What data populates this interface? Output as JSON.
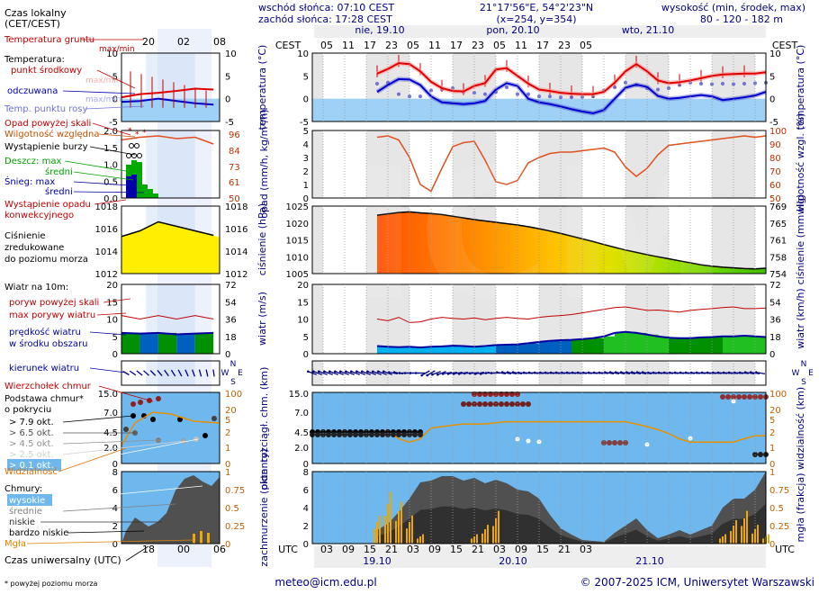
{
  "header": {
    "sunrise": "wschód słońca: 07:10 CEST",
    "sunset": "zachód słońca: 17:28 CEST",
    "coords": "21°17'56\"E, 54°2'23\"N",
    "grid": "(x=254,  y=354)",
    "elev_title": "wysokość (min, środek, max)",
    "elev_values": "80 - 120 - 182 m"
  },
  "legend": {
    "local_time": "Czas lokalny",
    "local_time_sub": "(CET/CEST)",
    "local_ticks": [
      "20",
      "02",
      "08"
    ],
    "soil_temp": "Temperatura gruntu",
    "soil_minmax": "max/min",
    "temp": "Temperatura:",
    "temp_mid": "punkt środkowy",
    "temp_maxmin": "max/min",
    "apparent": "odczuwana",
    "apparent_maxmin": "max/min",
    "dew": "Temp. punktu rosy",
    "precip_above": "Opad powyżej skali",
    "humidity": "Wilgotność względna",
    "storm": "Wystąpienie burzy",
    "rain_max": "Deszcz: max",
    "rain_avg": "średni",
    "snow_max": "Śnieg:      max",
    "snow_avg": "średni",
    "precip_occ1": "Wystąpienie opadu",
    "precip_occ2": "konwekcyjnego",
    "pressure1": "Ciśnienie",
    "pressure2": "zredukowane",
    "pressure3": "do poziomu morza",
    "wind_title": "Wiatr na 10m:",
    "gust_above": "poryw powyżej skali",
    "gust_max": "max porywy wiatru",
    "wind_speed1": "prędkość wiatru",
    "wind_speed2": "w środku obszaru",
    "wind_dir": "kierunek wiatru",
    "cloud_top": "Wierzchołek chmur",
    "cloud_base1": "Podstawa chmur*",
    "cloud_base2": "o pokryciu",
    "okt": [
      "> 7.9 okt.",
      "> 6.5 okt.",
      "> 4.5 okt.",
      "> 2.5 okt.",
      "> 0.1 okt."
    ],
    "visibility": "Widzialność",
    "clouds": "Chmury:",
    "clouds_high": "wysokie",
    "clouds_mid": "średnie",
    "clouds_low": "niskie",
    "clouds_vlow": "bardzo niskie",
    "fog": "Mgła",
    "utc_label": "Czas uniwersalny (UTC)",
    "utc_ticks": [
      "18",
      "00",
      "06"
    ],
    "footnote": "* powyżej poziomu morza"
  },
  "axes": {
    "cest": "CEST",
    "utc": "UTC",
    "days": [
      "nie, 19.10",
      "pon, 20.10",
      "wto, 21.10"
    ],
    "days_bottom": [
      "19.10",
      "20.10",
      "21.10"
    ],
    "local_hours": [
      "05",
      "11",
      "17",
      "23",
      "05",
      "11",
      "17",
      "23",
      "05",
      "11",
      "17",
      "23",
      "05"
    ],
    "utc_hours": [
      "03",
      "09",
      "15",
      "21",
      "03",
      "09",
      "15",
      "21",
      "03",
      "09",
      "15",
      "21",
      "03"
    ],
    "temp_left": "temperatura (°C)",
    "temp_right": "temperatura (°C)",
    "precip_left": "opad (mm/h, kg/m²/h)",
    "humidity_right": "wilgotność wzgl. (%)",
    "pressure_left": "ciśnienie (hPa)",
    "pressure_right": "ciśnienie (mm Hg)",
    "wind_left": "wiatr (m/s)",
    "wind_right": "wiatr (km/h)",
    "cloud_left": "pion. rozciągł. chm. (km)",
    "cloud_right": "widzialność (km)",
    "cover_left": "zachmurzenie (oktanty)",
    "cover_right": "mgła (frakcja)",
    "wind_dirs": "N W E S"
  },
  "footer": {
    "email": "meteo@icm.edu.pl",
    "copyright": "© 2007-2025 ICM, Uniwersytet Warszawski"
  },
  "chart_data": {
    "type": "line",
    "x_hours_utc": [
      21,
      24,
      27,
      30,
      33,
      36,
      39,
      42,
      45,
      48,
      51,
      54,
      57,
      60,
      63,
      66,
      69,
      72,
      75,
      78,
      81,
      84,
      87,
      90,
      93,
      96,
      99,
      102,
      105,
      108,
      111,
      114,
      117,
      120,
      123,
      126,
      129
    ],
    "panels": {
      "temperature": {
        "ylim": [
          -5,
          10
        ],
        "yticks": [
          -5,
          0,
          5,
          10
        ],
        "series": [
          {
            "name": "Temperatura punkt środkowy",
            "color": "#e00000",
            "values": [
              5.5,
              6.5,
              7.8,
              7.6,
              6.0,
              3.7,
              2.3,
              1.7,
              1.6,
              2.8,
              3.4,
              6.4,
              6.7,
              5.0,
              3.3,
              2.0,
              1.7,
              1.3,
              1.1,
              1.0,
              1.0,
              1.5,
              3.5,
              6.0,
              7.6,
              6.0,
              4.0,
              3.4,
              3.6,
              4.0,
              4.5,
              5.0,
              5.3,
              5.4,
              5.5,
              5.5,
              5.8
            ]
          },
          {
            "name": "odczuwana",
            "color": "#0000cc",
            "values": [
              1.5,
              3.0,
              4.3,
              4.2,
              3.0,
              0.5,
              -0.8,
              -1.0,
              -1.2,
              -1.0,
              -0.5,
              2.0,
              3.4,
              2.8,
              0.0,
              -0.8,
              -1.2,
              -1.7,
              -2.3,
              -2.8,
              -3.2,
              -2.5,
              0.0,
              2.4,
              3.1,
              2.6,
              0.6,
              0.0,
              0.2,
              0.5,
              0.8,
              0.5,
              -0.3,
              0.0,
              0.3,
              0.7,
              1.5
            ]
          },
          {
            "name": "Temp. punktu rosy",
            "color": "#7070dd",
            "values": [
              3.3,
              3.5,
              1.0,
              0.5,
              0.5,
              1.8,
              2.0,
              2.3,
              1.5,
              1.3,
              1.0,
              1.5,
              2.5,
              1.0,
              1.0,
              0.5,
              0.5,
              0.3,
              0.3,
              0.4,
              0.5,
              1.8,
              2.5,
              3.5,
              3.0,
              2.3,
              2.0,
              2.3,
              3.0,
              3.5,
              3.3,
              3.2,
              3.3,
              3.2,
              3.3,
              3.4,
              3.5
            ]
          }
        ]
      },
      "humidity": {
        "precip_ylim": [
          0,
          5
        ],
        "humidity_ylim": [
          50,
          100
        ],
        "values": [
          95,
          96,
          93,
          80,
          60,
          55,
          72,
          88,
          91,
          92,
          78,
          62,
          60,
          63,
          76,
          80,
          83,
          84,
          84,
          85,
          86,
          87,
          84,
          73,
          66,
          72,
          82,
          89,
          90,
          91,
          92,
          93,
          94,
          95,
          96,
          95,
          96
        ]
      },
      "pressure": {
        "ylim": [
          1005,
          1025
        ],
        "right_ticks": [
          754,
          758,
          761,
          765,
          769
        ],
        "values": [
          1022.3,
          1022.7,
          1023.1,
          1023.3,
          1023.0,
          1022.8,
          1022.5,
          1022.0,
          1021.5,
          1021.0,
          1020.6,
          1020.2,
          1019.8,
          1019.4,
          1018.9,
          1018.3,
          1017.6,
          1016.9,
          1016.1,
          1015.3,
          1014.5,
          1013.6,
          1012.8,
          1012.0,
          1011.3,
          1010.6,
          1010.0,
          1009.4,
          1008.8,
          1008.2,
          1007.6,
          1007.2,
          1006.9,
          1006.7,
          1006.5,
          1006.4,
          1006.6
        ]
      },
      "wind": {
        "ylim": [
          0,
          20
        ],
        "right_ticks": [
          0,
          18,
          36,
          54,
          72
        ],
        "speed": [
          2.2,
          2.0,
          1.9,
          2.0,
          1.8,
          2.0,
          2.1,
          2.3,
          2.2,
          2.0,
          2.2,
          2.5,
          2.6,
          2.7,
          3.0,
          3.4,
          3.7,
          3.9,
          4.0,
          4.2,
          4.5,
          5.0,
          6.0,
          6.3,
          6.0,
          5.5,
          5.0,
          4.6,
          4.5,
          4.5,
          4.7,
          4.8,
          5.0,
          5.0,
          5.2,
          5.0,
          4.8
        ],
        "gusts": [
          10.0,
          9.5,
          10.5,
          9.0,
          9.2,
          10.0,
          10.5,
          10.2,
          10.0,
          10.3,
          9.8,
          10.2,
          10.5,
          10.2,
          10.0,
          10.5,
          10.8,
          11.0,
          11.3,
          11.8,
          12.3,
          12.8,
          13.3,
          13.5,
          13.0,
          12.5,
          12.6,
          12.3,
          12.0,
          12.5,
          12.8,
          13.0,
          13.3,
          13.5,
          13.0,
          13.0,
          13.2
        ],
        "direction_deg": [
          110,
          110,
          100,
          90,
          90,
          60,
          70,
          80,
          80,
          85,
          80,
          90,
          100,
          100,
          95,
          95,
          95,
          95,
          95,
          95,
          95,
          95,
          100,
          100,
          100,
          100,
          95,
          95,
          95,
          95,
          95,
          95,
          95,
          95,
          95,
          100,
          100
        ]
      },
      "clouds_visibility": {
        "ylim_km": [
          0,
          15
        ],
        "yticks": [
          0,
          2.0,
          4.5,
          7.0,
          15.0
        ],
        "visibility_right_ticks": [
          0,
          1,
          2,
          5,
          20,
          100
        ],
        "visibility": [
          5,
          8,
          4,
          3,
          4,
          9,
          10,
          11,
          12,
          12,
          12,
          13,
          14,
          14,
          14,
          14,
          14,
          14,
          14,
          14,
          14,
          14,
          14,
          14,
          12,
          10,
          8,
          6,
          4,
          3,
          3,
          3,
          3,
          3,
          4,
          5,
          5
        ]
      },
      "cloud_cover": {
        "ylim": [
          0,
          8
        ],
        "yticks": [
          0,
          2,
          4,
          6,
          8
        ],
        "right_ticks": [
          0,
          0.25,
          0.5,
          0.75,
          1
        ],
        "cover": [
          1.5,
          2.2,
          3.5,
          5.0,
          6.8,
          7.0,
          7.5,
          7.5,
          7.0,
          7.3,
          6.7,
          7.1,
          6.7,
          6.0,
          5.8,
          5.0,
          3.2,
          1.7,
          1.0,
          0.4,
          0.3,
          0.2,
          1.2,
          2.0,
          2.8,
          1.5,
          0.6,
          1.0,
          1.5,
          1.0,
          1.5,
          2.0,
          4.0,
          5.0,
          5.0,
          6.0,
          8.0
        ],
        "fog": [
          0.3,
          0.55,
          0.45,
          0.3,
          0.1,
          0.0,
          0.0,
          0.0,
          0.0,
          0.1,
          0.2,
          0.35,
          0.0,
          0.0,
          0.0,
          0.0,
          0.0,
          0.0,
          0.0,
          0.0,
          0.0,
          0.0,
          0.0,
          0.0,
          0.0,
          0.0,
          0.0,
          0.0,
          0.0,
          0.0,
          0.0,
          0.0,
          0.1,
          0.25,
          0.35,
          0.2,
          0.1
        ]
      }
    }
  }
}
